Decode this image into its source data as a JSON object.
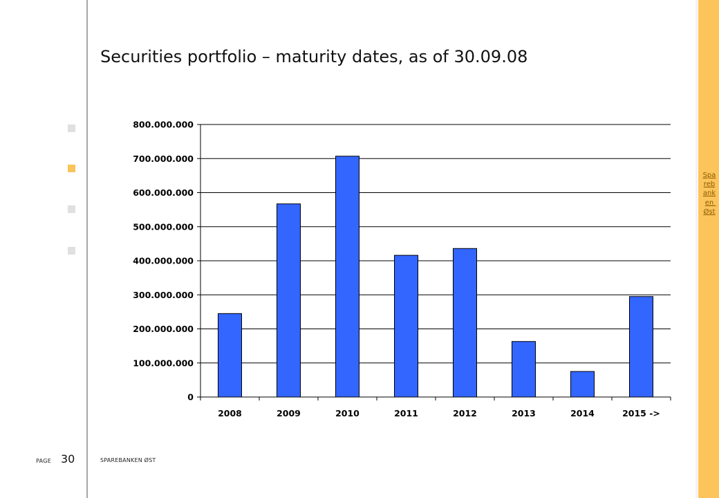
{
  "slide": {
    "title": "Securities portfolio – maturity dates, as of 30.09.08",
    "page_label": "PAGE",
    "page_number": "30",
    "footer_org": "SPAREBANKEN ØST",
    "side_brand": "Sparebanken Øst"
  },
  "nav_squares": [
    {
      "name": "nav-square-1",
      "color": "#e0e0e0"
    },
    {
      "name": "nav-square-2",
      "color": "#f9c45a"
    },
    {
      "name": "nav-square-3",
      "color": "#e0e0e0"
    },
    {
      "name": "nav-square-4",
      "color": "#e0e0e0"
    }
  ],
  "chart_data": {
    "type": "bar",
    "title": "",
    "xlabel": "",
    "ylabel": "",
    "categories": [
      "2008",
      "2009",
      "2010",
      "2011",
      "2012",
      "2013",
      "2014",
      "2015 ->"
    ],
    "values": [
      245000000,
      567000000,
      707000000,
      416000000,
      436000000,
      163000000,
      75000000,
      295000000
    ],
    "ylim": [
      0,
      800000000
    ],
    "yticks": [
      0,
      100000000,
      200000000,
      300000000,
      400000000,
      500000000,
      600000000,
      700000000,
      800000000
    ],
    "ytick_labels": [
      "0",
      "100.000.000",
      "200.000.000",
      "300.000.000",
      "400.000.000",
      "500.000.000",
      "600.000.000",
      "700.000.000",
      "800.000.000"
    ],
    "grid": true,
    "legend": "none",
    "bar_color": "#3366ff",
    "bar_edge_color": "#000000"
  }
}
